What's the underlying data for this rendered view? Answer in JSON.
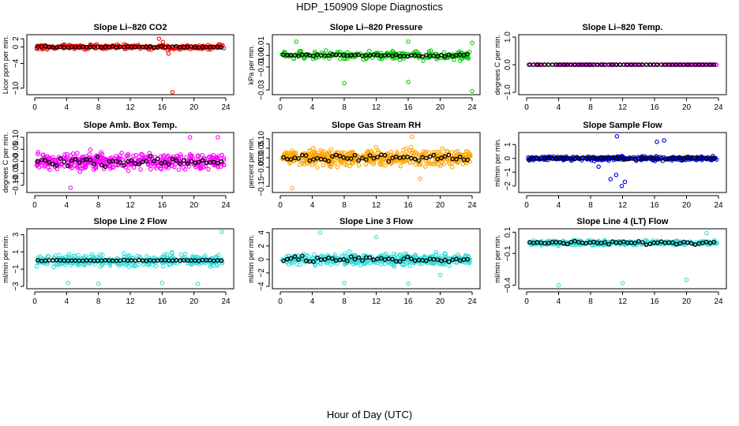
{
  "figure": {
    "title": "HDP_150909  Slope Diagnostics",
    "xlabel": "Hour of Day (UTC)"
  },
  "chart_data": [
    {
      "type": "scatter",
      "title": "Slope Li–820 CO2",
      "ylabel": "Licor ppm per min.",
      "color": "#ff0000",
      "xlim": [
        0,
        24
      ],
      "ylim": [
        -11,
        2.4
      ],
      "xticks": [
        0,
        4,
        8,
        12,
        16,
        20,
        24
      ],
      "yticks": [
        2,
        0,
        -4,
        -10
      ],
      "ytick_labels": [
        "2",
        "0",
        "−4",
        "−10"
      ],
      "series_center": 0,
      "series_spread": 0.9,
      "black_spread": 0.3,
      "outliers": [
        [
          15.6,
          2
        ],
        [
          16.7,
          -0.8
        ],
        [
          16.8,
          -1.6
        ],
        [
          17.5,
          -0.5
        ],
        [
          17.3,
          -11
        ],
        [
          16.1,
          1.2
        ]
      ],
      "n": 260
    },
    {
      "type": "scatter",
      "title": "Slope Li–820 Pressure",
      "ylabel": "kPa per min.",
      "color": "#00cc00",
      "xlim": [
        0,
        24
      ],
      "ylim": [
        -0.032,
        0.016
      ],
      "xticks": [
        0,
        4,
        8,
        12,
        16,
        20,
        24
      ],
      "yticks": [
        0.01,
        0.0,
        -0.01,
        -0.03
      ],
      "ytick_labels": [
        "0.01",
        "0.00",
        "−0.01",
        "−0.03"
      ],
      "series_center": 0,
      "series_spread": 0.006,
      "black_spread": 0.002,
      "outliers": [
        [
          8,
          -0.024
        ],
        [
          16,
          -0.023
        ],
        [
          24,
          -0.031
        ],
        [
          24,
          0.011
        ],
        [
          16,
          0.012
        ],
        [
          2,
          0.012
        ]
      ],
      "n": 240
    },
    {
      "type": "scatter",
      "title": "Slope Li–820 Temp.",
      "ylabel": "degrees C per min.",
      "color": "#cc00cc",
      "xlim": [
        0,
        24
      ],
      "ylim": [
        -1,
        1
      ],
      "xticks": [
        0,
        4,
        8,
        12,
        16,
        20,
        24
      ],
      "yticks": [
        1,
        0,
        -1
      ],
      "ytick_labels": [
        "1.0",
        "0.0",
        "−1.0"
      ],
      "series_center": 0,
      "series_spread": 0.0,
      "black_spread": 0.0,
      "outliers": [],
      "n": 140
    },
    {
      "type": "scatter",
      "title": "Slope Amb. Box Temp.",
      "ylabel": "degrees C per min.",
      "color": "#ff00ff",
      "xlim": [
        0,
        24
      ],
      "ylim": [
        -0.12,
        0.11
      ],
      "xticks": [
        0,
        4,
        8,
        12,
        16,
        20,
        24
      ],
      "yticks": [
        0.1,
        0.05,
        0.0,
        -0.05,
        -0.1
      ],
      "ytick_labels": [
        "0.10",
        "0.05",
        "0.00",
        "−0.05",
        "−0.10"
      ],
      "series_center": 0,
      "series_spread": 0.055,
      "black_spread": 0.035,
      "outliers": [
        [
          4.5,
          -0.11
        ],
        [
          19.5,
          0.1
        ],
        [
          23,
          0.1
        ]
      ],
      "n": 420
    },
    {
      "type": "scatter",
      "title": "Slope Gas Stream RH",
      "ylabel": "percent per min.",
      "color": "#ffa500",
      "xlim": [
        0,
        24
      ],
      "ylim": [
        -0.17,
        0.12
      ],
      "xticks": [
        0,
        4,
        8,
        12,
        16,
        20,
        24
      ],
      "yticks": [
        0.1,
        0.05,
        0.0,
        -0.05,
        -0.15
      ],
      "ytick_labels": [
        "0.10",
        "0.05",
        "0.00",
        "−0.05",
        "−0.15"
      ],
      "series_center": 0,
      "series_spread": 0.065,
      "black_spread": 0.035,
      "outliers": [
        [
          1.5,
          -0.16
        ],
        [
          16.5,
          0.11
        ],
        [
          17.5,
          -0.11
        ]
      ],
      "n": 480
    },
    {
      "type": "scatter",
      "title": "Slope Sample Flow",
      "ylabel": "ml/min per min.",
      "color": "#0000dd",
      "xlim": [
        0,
        24
      ],
      "ylim": [
        -2.3,
        1.7
      ],
      "xticks": [
        0,
        4,
        8,
        12,
        16,
        20,
        24
      ],
      "yticks": [
        1,
        0,
        -1,
        -2
      ],
      "ytick_labels": [
        "1",
        "0",
        "−1",
        "−2"
      ],
      "series_center": 0,
      "series_spread": 0.25,
      "black_spread": 0.1,
      "outliers": [
        [
          11.9,
          -2
        ],
        [
          12.3,
          -1.7
        ],
        [
          11.2,
          -1.2
        ],
        [
          10.5,
          -1.5
        ],
        [
          16.3,
          1.2
        ],
        [
          17.2,
          1.3
        ],
        [
          11.3,
          1.6
        ],
        [
          9,
          -0.6
        ]
      ],
      "n": 320
    },
    {
      "type": "scatter",
      "title": "Slope Line 2 Flow",
      "ylabel": "ml/min per min.",
      "color": "#33dddd",
      "xlim": [
        0,
        24
      ],
      "ylim": [
        -3,
        3.4
      ],
      "xticks": [
        0,
        4,
        8,
        12,
        16,
        20,
        24
      ],
      "yticks": [
        3,
        1,
        -1,
        -3
      ],
      "ytick_labels": [
        "3",
        "1",
        "−1",
        "−3"
      ],
      "series_center": 0,
      "series_spread": 1.1,
      "black_spread": 0.1,
      "outliers": [
        [
          8,
          -2.7
        ],
        [
          16,
          -2.6
        ],
        [
          23.5,
          3.3
        ],
        [
          20.5,
          -2.7
        ],
        [
          4.2,
          -2.6
        ]
      ],
      "n": 380
    },
    {
      "type": "scatter",
      "title": "Slope Line 3 Flow",
      "ylabel": "ml/min per min.",
      "color": "#33dddd",
      "xlim": [
        0,
        24
      ],
      "ylim": [
        -4,
        4.2
      ],
      "xticks": [
        0,
        4,
        8,
        12,
        16,
        20,
        24
      ],
      "yticks": [
        4,
        2,
        0,
        -2,
        -4
      ],
      "ytick_labels": [
        "4",
        "2",
        "0",
        "−2",
        "−4"
      ],
      "series_center": 0,
      "series_spread": 1.3,
      "black_spread": 0.9,
      "outliers": [
        [
          5,
          4
        ],
        [
          16,
          -3.6
        ],
        [
          8,
          -3.5
        ],
        [
          12,
          3.3
        ],
        [
          20,
          -2.3
        ]
      ],
      "n": 420
    },
    {
      "type": "scatter",
      "title": "Slope Line 4 (LT) Flow",
      "ylabel": "ml/min per min.",
      "color": "#33dddd",
      "xlim": [
        0,
        24
      ],
      "ylim": [
        -0.41,
        0.11
      ],
      "xticks": [
        0,
        4,
        8,
        12,
        16,
        20,
        24
      ],
      "yticks": [
        0.1,
        -0.1,
        -0.4
      ],
      "ytick_labels": [
        "0.1",
        "−0.1",
        "−0.4"
      ],
      "series_center": 0,
      "series_spread": 0.035,
      "black_spread": 0.03,
      "outliers": [
        [
          4,
          -0.4
        ],
        [
          12,
          -0.38
        ],
        [
          20,
          -0.35
        ],
        [
          22.5,
          0.09
        ]
      ],
      "n": 380
    }
  ]
}
